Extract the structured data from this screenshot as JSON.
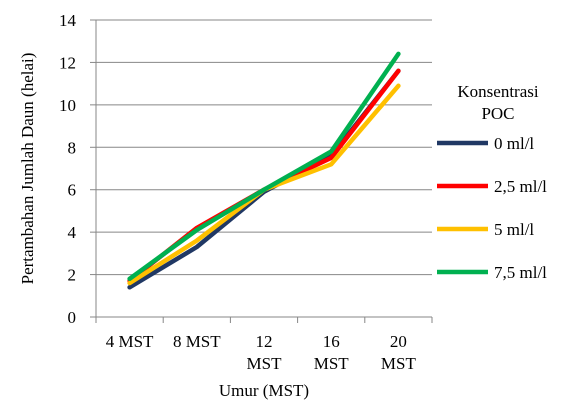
{
  "chart_data": {
    "type": "line",
    "categories": [
      "4 MST",
      "8 MST",
      "12 MST",
      "16 MST",
      "20 MST"
    ],
    "category_lines": [
      [
        "4 MST"
      ],
      [
        "8 MST"
      ],
      [
        "12",
        "MST"
      ],
      [
        "16",
        "MST"
      ],
      [
        "20",
        "MST"
      ]
    ],
    "series": [
      {
        "name": "0 ml/l",
        "color": "#203864",
        "values": [
          1.4,
          3.3,
          5.9,
          7.6,
          11.6
        ]
      },
      {
        "name": "2,5 ml/l",
        "color": "#ff0000",
        "values": [
          1.7,
          4.2,
          6.0,
          7.5,
          11.6
        ]
      },
      {
        "name": "5 ml/l",
        "color": "#ffc000",
        "values": [
          1.6,
          3.6,
          6.0,
          7.2,
          10.9
        ]
      },
      {
        "name": "7,5 ml/l",
        "color": "#00b050",
        "values": [
          1.8,
          4.1,
          6.0,
          7.8,
          12.4
        ]
      }
    ],
    "xlabel": "Umur (MST)",
    "ylabel": "Pertambahan  Jumlah Daun (helai)",
    "ylim": [
      0,
      14
    ],
    "yticks": [
      0,
      2,
      4,
      6,
      8,
      10,
      12,
      14
    ],
    "legend_title_lines": [
      "Konsentrasi",
      "POC"
    ],
    "legend_position": "right",
    "grid": true
  }
}
